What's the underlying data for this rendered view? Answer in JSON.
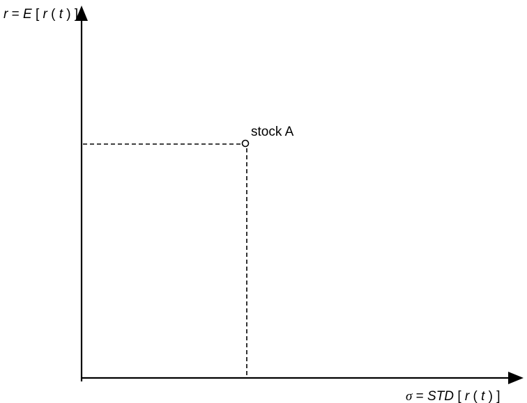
{
  "y_axis": {
    "symbol": "r",
    "equals": " = ",
    "expectation": "E",
    "bracket_open": "[",
    "inner_symbol": "r",
    "paren_open": "(",
    "time_symbol": "t",
    "paren_close": ")",
    "bracket_close": "]"
  },
  "x_axis": {
    "symbol": "σ",
    "equals": " = ",
    "operator": "STD",
    "bracket_open": "[",
    "inner_symbol": "r",
    "paren_open": "(",
    "time_symbol": "t",
    "paren_close": ")",
    "bracket_close": "]"
  },
  "point": {
    "label": "stock A"
  }
}
